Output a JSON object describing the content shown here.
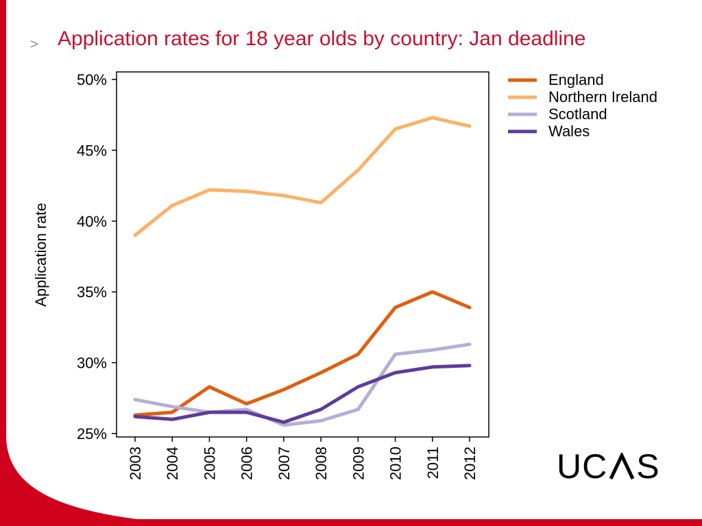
{
  "slide": {
    "chevron": ">",
    "title": "Application rates for 18 year olds by country: Jan deadline",
    "logo_text_before": "UC",
    "logo_text_after": "S",
    "logo_full_text": "UCAS"
  },
  "colors": {
    "brand_red": "#d0021b",
    "title_red": "#c8102e"
  },
  "chart_data": {
    "type": "line",
    "title": "",
    "xlabel": "",
    "ylabel": "Application rate",
    "x": [
      "2003",
      "2004",
      "2005",
      "2006",
      "2007",
      "2008",
      "2009",
      "2010",
      "2011",
      "2012"
    ],
    "ylim": [
      25,
      50
    ],
    "yticks": [
      "25%",
      "30%",
      "35%",
      "40%",
      "45%",
      "50%"
    ],
    "ytick_values": [
      25,
      30,
      35,
      40,
      45,
      50
    ],
    "grid": false,
    "legend_position": "right, outside plot, top",
    "series": [
      {
        "name": "England",
        "color": "#e35d0e",
        "values": [
          26.3,
          26.5,
          28.3,
          27.1,
          28.1,
          29.3,
          30.6,
          33.9,
          35.0,
          33.9
        ]
      },
      {
        "name": "Northern Ireland",
        "color": "#fbb266",
        "values": [
          39.0,
          41.1,
          42.2,
          42.1,
          41.8,
          41.3,
          43.6,
          46.5,
          47.3,
          46.7
        ]
      },
      {
        "name": "Scotland",
        "color": "#b4afd6",
        "values": [
          27.4,
          26.9,
          26.5,
          26.7,
          25.6,
          25.9,
          26.7,
          30.6,
          30.9,
          31.3
        ]
      },
      {
        "name": "Wales",
        "color": "#5e3c99",
        "values": [
          26.2,
          26.0,
          26.5,
          26.5,
          25.8,
          26.7,
          28.3,
          29.3,
          29.7,
          29.8
        ]
      }
    ]
  }
}
